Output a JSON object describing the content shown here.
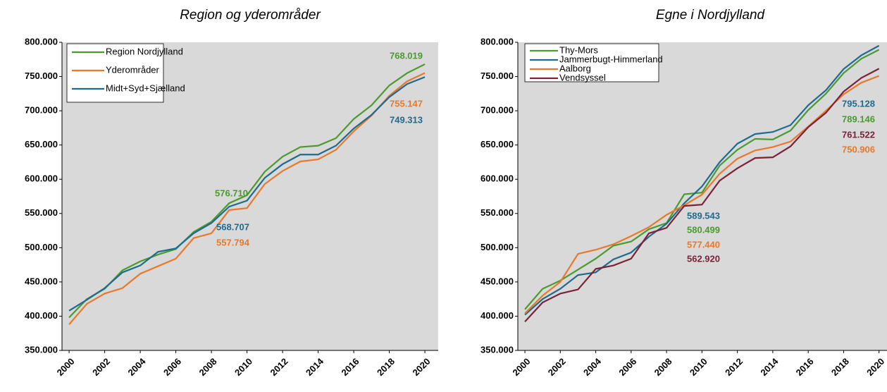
{
  "chart_data": [
    {
      "type": "line",
      "title": "Region og yderområder",
      "x": [
        2000,
        2001,
        2002,
        2003,
        2004,
        2005,
        2006,
        2007,
        2008,
        2009,
        2010,
        2011,
        2012,
        2013,
        2014,
        2015,
        2016,
        2017,
        2018,
        2019,
        2020
      ],
      "xlim": [
        1999.6,
        2020.75
      ],
      "xticks": [
        2000,
        2002,
        2004,
        2006,
        2008,
        2010,
        2012,
        2014,
        2016,
        2018,
        2020
      ],
      "ylim": [
        350000,
        800000
      ],
      "yticks": [
        {
          "value": 350000,
          "label": "350.000"
        },
        {
          "value": 400000,
          "label": "400.000"
        },
        {
          "value": 450000,
          "label": "450.000"
        },
        {
          "value": 500000,
          "label": "500.000"
        },
        {
          "value": 550000,
          "label": "550.000"
        },
        {
          "value": 600000,
          "label": "600.000"
        },
        {
          "value": 650000,
          "label": "650.000"
        },
        {
          "value": 700000,
          "label": "700.000"
        },
        {
          "value": 750000,
          "label": "750.000"
        },
        {
          "value": 800000,
          "label": "800.000"
        }
      ],
      "legend": "upper left",
      "series": [
        {
          "name": "Region Nordjylland",
          "color": "#4b9a2f",
          "values": [
            398000,
            425000,
            440000,
            467000,
            480000,
            490000,
            498000,
            523000,
            538000,
            565000,
            576710,
            611000,
            633000,
            647000,
            649000,
            660000,
            688000,
            708000,
            737000,
            755000,
            768019
          ],
          "value_labels": [
            null,
            null,
            null,
            null,
            null,
            null,
            null,
            null,
            null,
            null,
            "576.710",
            null,
            null,
            null,
            null,
            null,
            null,
            null,
            null,
            null,
            "768.019"
          ]
        },
        {
          "name": "Yderområder",
          "color": "#e8792b",
          "values": [
            388000,
            418000,
            433000,
            441000,
            462000,
            473000,
            484000,
            514000,
            521000,
            555000,
            557794,
            593000,
            612000,
            626000,
            629000,
            643000,
            670000,
            693000,
            722000,
            743000,
            755147
          ],
          "value_labels": [
            null,
            null,
            null,
            null,
            null,
            null,
            null,
            null,
            null,
            null,
            "557.794",
            null,
            null,
            null,
            null,
            null,
            null,
            null,
            null,
            null,
            "755.147"
          ]
        },
        {
          "name": "Midt+Syd+Sjælland",
          "color": "#1f6b8e",
          "values": [
            408000,
            424000,
            441000,
            464000,
            474000,
            494000,
            499000,
            521000,
            536000,
            560000,
            568707,
            602000,
            622000,
            636000,
            636000,
            649000,
            674000,
            694000,
            720000,
            739000,
            749313
          ],
          "value_labels": [
            null,
            null,
            null,
            null,
            null,
            null,
            null,
            null,
            null,
            null,
            "568.707",
            null,
            null,
            null,
            null,
            null,
            null,
            null,
            null,
            null,
            "749.313"
          ]
        }
      ]
    },
    {
      "type": "line",
      "title": "Egne i Nordjylland",
      "x": [
        2000,
        2001,
        2002,
        2003,
        2004,
        2005,
        2006,
        2007,
        2008,
        2009,
        2010,
        2011,
        2012,
        2013,
        2014,
        2015,
        2016,
        2017,
        2018,
        2019,
        2020
      ],
      "xlim": [
        1999.6,
        2020.45
      ],
      "xticks": [
        2000,
        2002,
        2004,
        2006,
        2008,
        2010,
        2012,
        2014,
        2016,
        2018,
        2020
      ],
      "ylim": [
        350000,
        800000
      ],
      "yticks": [
        {
          "value": 350000,
          "label": "350.000"
        },
        {
          "value": 400000,
          "label": "400.000"
        },
        {
          "value": 450000,
          "label": "450.000"
        },
        {
          "value": 500000,
          "label": "500.000"
        },
        {
          "value": 550000,
          "label": "550.000"
        },
        {
          "value": 600000,
          "label": "600.000"
        },
        {
          "value": 650000,
          "label": "650.000"
        },
        {
          "value": 700000,
          "label": "700.000"
        },
        {
          "value": 750000,
          "label": "750.000"
        },
        {
          "value": 800000,
          "label": "800.000"
        }
      ],
      "legend": "upper left",
      "series": [
        {
          "name": "Thy-Mors",
          "color": "#4b9a2f",
          "values": [
            410000,
            440000,
            452000,
            468000,
            484000,
            503000,
            509000,
            527000,
            536000,
            578000,
            580499,
            620000,
            643000,
            659000,
            658000,
            671000,
            701000,
            725000,
            755000,
            776000,
            789146
          ],
          "value_labels": [
            null,
            null,
            null,
            null,
            null,
            null,
            null,
            null,
            null,
            null,
            "580.499",
            null,
            null,
            null,
            null,
            null,
            null,
            null,
            null,
            null,
            "789.146"
          ]
        },
        {
          "name": "Jammerbugt-Himmerland",
          "color": "#1f6b8e",
          "values": [
            402000,
            425000,
            440000,
            460000,
            464000,
            483000,
            493000,
            516000,
            535000,
            565000,
            589543,
            625000,
            652000,
            666000,
            669000,
            679000,
            708000,
            730000,
            761000,
            781000,
            795128
          ],
          "value_labels": [
            null,
            null,
            null,
            null,
            null,
            null,
            null,
            null,
            null,
            null,
            "589.543",
            null,
            null,
            null,
            null,
            null,
            null,
            null,
            null,
            null,
            "795.128"
          ]
        },
        {
          "name": "Aalborg",
          "color": "#e8792b",
          "values": [
            404000,
            430000,
            450000,
            491000,
            497000,
            505000,
            517000,
            530000,
            548000,
            562000,
            577440,
            608000,
            630000,
            642000,
            647000,
            655000,
            677000,
            700000,
            724000,
            741000,
            750906
          ],
          "value_labels": [
            null,
            null,
            null,
            null,
            null,
            null,
            null,
            null,
            null,
            null,
            "577.440",
            null,
            null,
            null,
            null,
            null,
            null,
            null,
            null,
            null,
            "750.906"
          ]
        },
        {
          "name": "Vendsyssel",
          "color": "#7b2237",
          "values": [
            392000,
            420000,
            433000,
            439000,
            469000,
            474000,
            484000,
            521000,
            529000,
            561000,
            562920,
            598000,
            616000,
            631000,
            632000,
            648000,
            676000,
            697000,
            728000,
            748000,
            761522
          ],
          "value_labels": [
            null,
            null,
            null,
            null,
            null,
            null,
            null,
            null,
            null,
            null,
            "562.920",
            null,
            null,
            null,
            null,
            null,
            null,
            null,
            null,
            null,
            "761.522"
          ]
        }
      ]
    }
  ]
}
